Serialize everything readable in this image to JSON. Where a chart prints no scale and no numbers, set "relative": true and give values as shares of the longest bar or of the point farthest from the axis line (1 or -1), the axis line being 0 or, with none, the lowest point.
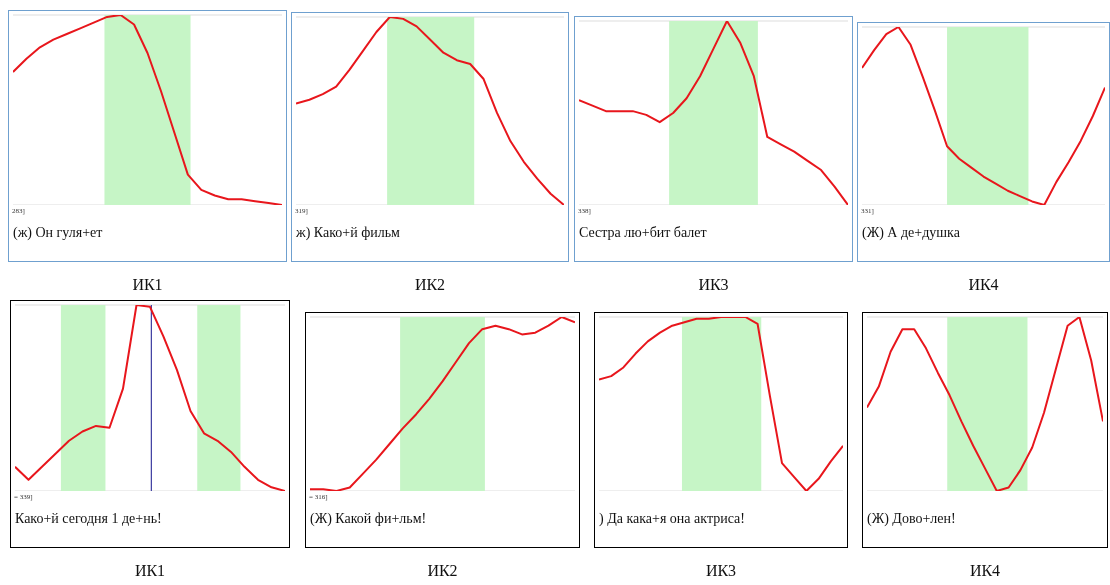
{
  "chart_data": [
    {
      "type": "line",
      "grid": "y",
      "title": "ИК1",
      "xlabel": "(ж) Он гуля+ет",
      "annotations": [
        "283]"
      ],
      "relative": true,
      "categories": [
        null,
        null,
        null,
        null,
        null,
        null,
        null,
        null,
        null,
        null,
        null,
        null,
        null,
        null,
        null,
        null,
        null,
        null,
        null,
        null,
        null
      ],
      "series": [
        {
          "color": "#e8161c",
          "values": [
            0.7,
            0.77,
            0.83,
            0.87,
            0.9,
            0.93,
            0.96,
            0.99,
            1.0,
            0.95,
            0.8,
            0.6,
            0.38,
            0.16,
            0.08,
            0.05,
            0.03,
            0.03,
            0.02,
            0.01,
            0
          ]
        }
      ]
    },
    {
      "type": "line",
      "grid": "y",
      "title": "ИК2",
      "xlabel": "ж) Како+й фильм",
      "annotations": [
        "319]"
      ],
      "relative": true,
      "categories": [
        null,
        null,
        null,
        null,
        null,
        null,
        null,
        null,
        null,
        null,
        null,
        null,
        null,
        null,
        null,
        null,
        null,
        null,
        null,
        null,
        null
      ],
      "series": [
        {
          "color": "#e8161c",
          "values": [
            0.54,
            0.56,
            0.59,
            0.63,
            0.72,
            0.82,
            0.92,
            1.0,
            0.99,
            0.95,
            0.88,
            0.81,
            0.77,
            0.75,
            0.67,
            0.49,
            0.34,
            0.23,
            0.14,
            0.06,
            0
          ]
        }
      ]
    },
    {
      "type": "line",
      "grid": "y",
      "title": "ИК3",
      "xlabel": "Сестра лю+бит балет",
      "annotations": [
        "338]"
      ],
      "relative": true,
      "categories": [
        null,
        null,
        null,
        null,
        null,
        null,
        null,
        null,
        null,
        null,
        null,
        null,
        null,
        null,
        null,
        null,
        null,
        null,
        null,
        null,
        null
      ],
      "series": [
        {
          "color": "#e8161c",
          "values": [
            0.57,
            0.54,
            0.51,
            0.51,
            0.51,
            0.49,
            0.45,
            0.5,
            0.58,
            0.7,
            0.85,
            1.0,
            0.88,
            0.7,
            0.37,
            0.33,
            0.29,
            0.24,
            0.19,
            0.1,
            0
          ]
        }
      ]
    },
    {
      "type": "line",
      "grid": "y",
      "title": "ИК4",
      "xlabel": "(Ж) А де+душка",
      "annotations": [
        "331]"
      ],
      "relative": true,
      "categories": [
        null,
        null,
        null,
        null,
        null,
        null,
        null,
        null,
        null,
        null,
        null,
        null,
        null,
        null,
        null,
        null,
        null,
        null,
        null,
        null,
        null
      ],
      "series": [
        {
          "color": "#e8161c",
          "values": [
            0.77,
            0.87,
            0.96,
            1.0,
            0.9,
            0.72,
            0.53,
            0.33,
            0.26,
            0.21,
            0.16,
            0.12,
            0.08,
            0.05,
            0.02,
            0,
            0.13,
            0.24,
            0.36,
            0.5,
            0.66
          ]
        }
      ]
    },
    {
      "type": "line",
      "grid": "y",
      "title": "ИК1",
      "xlabel": "Како+й сегодня 1 де+нь!",
      "annotations": [
        "= 339]"
      ],
      "relative": true,
      "categories": [
        null,
        null,
        null,
        null,
        null,
        null,
        null,
        null,
        null,
        null,
        null,
        null,
        null,
        null,
        null,
        null,
        null,
        null,
        null,
        null,
        null
      ],
      "series": [
        {
          "color": "#e8161c",
          "values": [
            0.13,
            0.06,
            0.13,
            0.2,
            0.27,
            0.32,
            0.35,
            0.34,
            0.55,
            1.0,
            0.99,
            0.83,
            0.65,
            0.43,
            0.31,
            0.27,
            0.21,
            0.13,
            0.06,
            0.02,
            0
          ]
        }
      ]
    },
    {
      "type": "line",
      "grid": "y",
      "title": "ИК2",
      "xlabel": "(Ж) Какой фи+льм!",
      "annotations": [
        "= 316]"
      ],
      "relative": true,
      "categories": [
        null,
        null,
        null,
        null,
        null,
        null,
        null,
        null,
        null,
        null,
        null,
        null,
        null,
        null,
        null,
        null,
        null,
        null,
        null,
        null,
        null
      ],
      "series": [
        {
          "color": "#e8161c",
          "values": [
            0.01,
            0.01,
            0,
            0.02,
            0.1,
            0.18,
            0.27,
            0.36,
            0.44,
            0.53,
            0.63,
            0.74,
            0.85,
            0.93,
            0.95,
            0.93,
            0.9,
            0.91,
            0.95,
            1.0,
            0.97
          ]
        }
      ]
    },
    {
      "type": "line",
      "grid": "y",
      "title": "ИК3",
      "xlabel": ") Да кака+я она актриса!",
      "relative": true,
      "categories": [
        null,
        null,
        null,
        null,
        null,
        null,
        null,
        null,
        null,
        null,
        null,
        null,
        null,
        null,
        null,
        null,
        null,
        null,
        null,
        null,
        null
      ],
      "series": [
        {
          "color": "#e8161c",
          "values": [
            0.64,
            0.66,
            0.71,
            0.79,
            0.86,
            0.91,
            0.95,
            0.97,
            0.99,
            0.99,
            1.0,
            1.0,
            1.0,
            0.96,
            0.55,
            0.16,
            0.08,
            0,
            0.07,
            0.17,
            0.26
          ]
        }
      ]
    },
    {
      "type": "line",
      "grid": "y",
      "title": "ИК4",
      "xlabel": "(Ж) Дово+лен!",
      "relative": true,
      "categories": [
        null,
        null,
        null,
        null,
        null,
        null,
        null,
        null,
        null,
        null,
        null,
        null,
        null,
        null,
        null,
        null,
        null,
        null,
        null,
        null,
        null
      ],
      "series": [
        {
          "color": "#e8161c",
          "values": [
            0.48,
            0.6,
            0.8,
            0.93,
            0.93,
            0.82,
            0.68,
            0.55,
            0.4,
            0.26,
            0.13,
            0,
            0.02,
            0.12,
            0.25,
            0.45,
            0.7,
            0.95,
            1.0,
            0.75,
            0.4
          ]
        }
      ]
    }
  ]
}
